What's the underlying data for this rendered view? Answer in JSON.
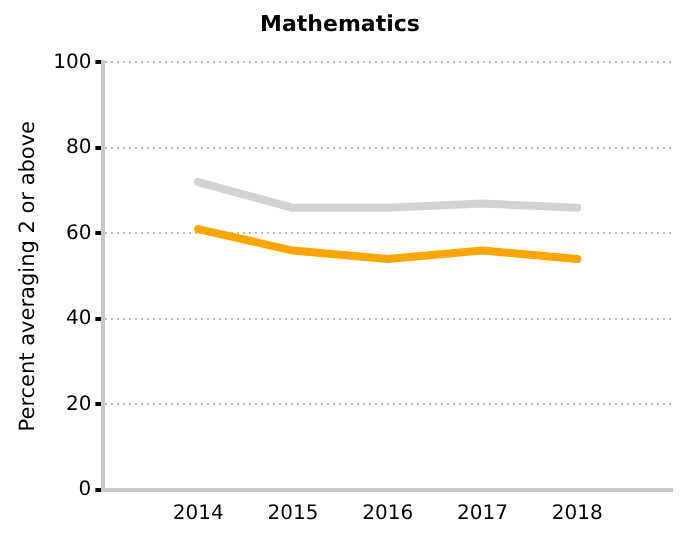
{
  "chart_data": {
    "type": "line",
    "title": "Mathematics",
    "ylabel": "Percent averaging 2 or above",
    "categories": [
      null,
      "2014",
      "2015",
      "2016",
      "2017",
      "2018",
      null
    ],
    "series": [
      {
        "color": "#d3d3d3",
        "values": [
          null,
          72,
          66,
          66,
          67,
          66,
          null
        ]
      },
      {
        "color": "#ffa500",
        "values": [
          null,
          61,
          56,
          54,
          56,
          54,
          null
        ]
      }
    ],
    "ylim": [
      0,
      100
    ],
    "yticks": [
      0,
      20,
      40,
      60,
      80,
      100
    ],
    "grid": "y",
    "legend": false,
    "marker": "none",
    "line_style": "solid"
  }
}
